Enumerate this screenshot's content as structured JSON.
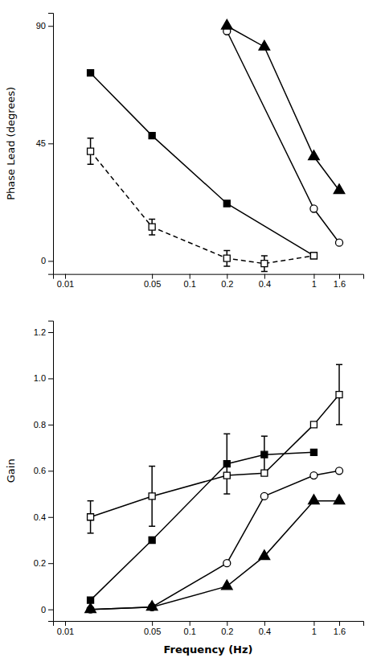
{
  "chart_data": [
    {
      "type": "line",
      "ylabel": "Phase Lead (degrees)",
      "log": "x",
      "grid": false,
      "color": "black",
      "xlim": [
        0.008,
        2.5
      ],
      "xticks": [
        0.01,
        0.05,
        0.1,
        0.2,
        0.4,
        1,
        1.6
      ],
      "ylim": [
        -5,
        95
      ],
      "yticks": [
        0,
        45,
        90
      ],
      "series": [
        {
          "x": [
            0.016,
            0.05,
            0.2,
            1.0
          ],
          "values": [
            72,
            48,
            22,
            2
          ],
          "marker": "filled-square",
          "line_style": "solid"
        },
        {
          "x": [
            0.016,
            0.05,
            0.2,
            0.4,
            1.0
          ],
          "values": [
            42,
            13,
            1,
            -1,
            2
          ],
          "errors": [
            5,
            3,
            3,
            3,
            null
          ],
          "marker": "open-square",
          "line_style": "dashed"
        },
        {
          "x": [
            0.2,
            1.0,
            1.6
          ],
          "values": [
            88,
            20,
            7
          ],
          "marker": "open-circle",
          "line_style": "solid"
        },
        {
          "x": [
            0.2,
            0.4,
            1.0,
            1.6
          ],
          "values": [
            90,
            82,
            40,
            27
          ],
          "marker": "filled-triangle",
          "line_style": "solid"
        }
      ]
    },
    {
      "type": "line",
      "xlabel": "Frequency (Hz)",
      "ylabel": "Gain",
      "log": "x",
      "grid": false,
      "color": "black",
      "xlim": [
        0.008,
        2.5
      ],
      "xticks": [
        0.01,
        0.05,
        0.1,
        0.2,
        0.4,
        1,
        1.6
      ],
      "ylim": [
        -0.05,
        1.25
      ],
      "yticks": [
        0,
        0.2,
        0.4,
        0.6,
        0.8,
        {
          "value": 1.0,
          "label": "1.0"
        },
        1.2
      ],
      "series": [
        {
          "x": [
            0.016,
            0.05,
            0.2,
            0.4,
            1.0
          ],
          "values": [
            0.04,
            0.3,
            0.63,
            0.67,
            0.68
          ],
          "errors": [
            null,
            null,
            0.13,
            0.08,
            null
          ],
          "marker": "filled-square",
          "line_style": "solid"
        },
        {
          "x": [
            0.016,
            0.05,
            0.2,
            0.4,
            1.0,
            1.6
          ],
          "values": [
            0.4,
            0.49,
            0.58,
            0.59,
            0.8,
            0.93
          ],
          "errors": [
            0.07,
            0.13,
            null,
            null,
            null,
            0.13
          ],
          "marker": "open-square",
          "line_style": "solid"
        },
        {
          "x": [
            0.016,
            0.05,
            0.2,
            0.4,
            1.0,
            1.6
          ],
          "values": [
            0.0,
            0.01,
            0.2,
            0.49,
            0.58,
            0.6
          ],
          "marker": "open-circle",
          "line_style": "solid"
        },
        {
          "x": [
            0.016,
            0.05,
            0.2,
            0.4,
            1.0,
            1.6
          ],
          "values": [
            0.0,
            0.01,
            0.1,
            0.23,
            0.47,
            0.47
          ],
          "marker": "filled-triangle",
          "line_style": "solid"
        }
      ]
    }
  ]
}
